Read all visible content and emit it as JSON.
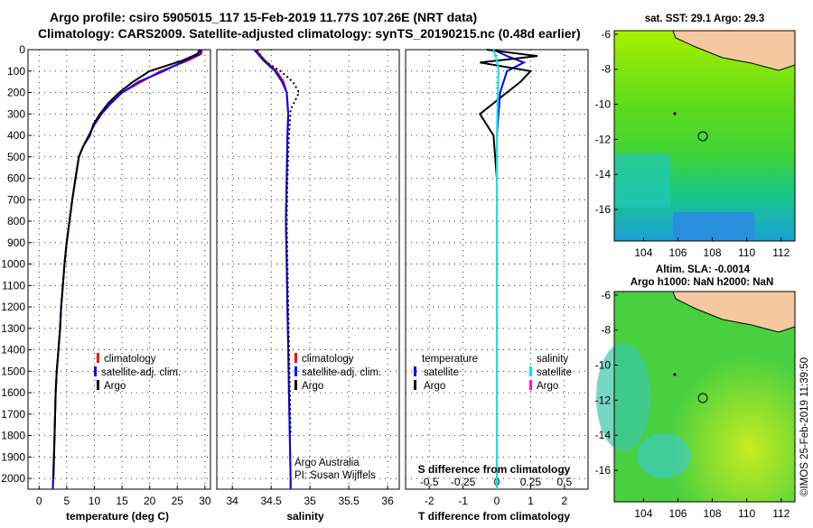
{
  "header": {
    "line1": "Argo profile: csiro 5905015_117 15-Feb-2019 11.77S 107.26E (NRT data)",
    "line2": "Climatology: CARS2009. Satellite-adjusted climatology: synTS_20190215.nc (0.48d earlier)"
  },
  "colors": {
    "climatology": "#ff0000",
    "satellite": "#0000ff",
    "argo": "#000000",
    "s_satellite": "#00e5ee",
    "s_argo": "#ff00ff",
    "land": "#f5c8a0"
  },
  "chart_data": [
    {
      "type": "line",
      "xlabel": "temperature (deg C)",
      "ylabel": "",
      "xlim": [
        -2,
        31
      ],
      "ylim": [
        2050,
        0
      ],
      "xticks": [
        0,
        5,
        10,
        15,
        20,
        25,
        30
      ],
      "yticks": [
        0,
        100,
        200,
        300,
        400,
        500,
        600,
        700,
        800,
        900,
        1000,
        1100,
        1200,
        1300,
        1400,
        1500,
        1600,
        1700,
        1800,
        1900,
        2000
      ],
      "grid": true,
      "legend": "bottom-center",
      "series": [
        {
          "name": "climatology",
          "color": "#ff0000",
          "x": [
            29.5,
            29.3,
            27,
            22,
            18.5,
            15,
            13,
            11.3,
            10,
            9,
            8,
            7.2,
            6.6,
            6,
            5.5,
            5,
            4.6,
            4.3,
            4,
            3.8,
            3.5,
            3.2,
            3,
            2.8,
            2.5
          ],
          "y": [
            0,
            20,
            50,
            100,
            150,
            200,
            250,
            300,
            350,
            400,
            450,
            500,
            600,
            700,
            800,
            900,
            1000,
            1100,
            1200,
            1300,
            1400,
            1500,
            1600,
            1800,
            2050
          ]
        },
        {
          "name": "satellite-adj. clim.",
          "color": "#0000ff",
          "x": [
            29.3,
            29.1,
            26.5,
            22.5,
            18,
            15,
            13,
            11.2,
            10,
            9,
            8,
            7.2,
            6.6,
            6,
            5.5,
            5,
            4.6,
            4.3,
            4,
            3.8,
            3.5,
            3.2,
            3,
            2.8,
            2.5
          ],
          "y": [
            0,
            20,
            50,
            100,
            150,
            200,
            250,
            300,
            350,
            400,
            450,
            500,
            600,
            700,
            800,
            900,
            1000,
            1100,
            1200,
            1300,
            1400,
            1500,
            1600,
            1800,
            2050
          ]
        },
        {
          "name": "Argo",
          "color": "#000000",
          "x": [
            29.1,
            28.6,
            26,
            20,
            17,
            14.5,
            12.5,
            11,
            9.8,
            9.2,
            8,
            7.2,
            6.6,
            6,
            5.5,
            5,
            4.6,
            4.3,
            4,
            3.8,
            3.5,
            3.2,
            3,
            2.8,
            2.6
          ],
          "y": [
            0,
            20,
            50,
            100,
            150,
            200,
            250,
            300,
            350,
            400,
            450,
            500,
            600,
            700,
            800,
            900,
            1000,
            1100,
            1200,
            1300,
            1400,
            1500,
            1600,
            1800,
            2000
          ]
        }
      ]
    },
    {
      "type": "line",
      "xlabel": "salinity",
      "ylabel": "",
      "xlim": [
        33.8,
        36.15
      ],
      "ylim": [
        2050,
        0
      ],
      "xticks": [
        34,
        34.5,
        35,
        35.5,
        36
      ],
      "grid": true,
      "legend": "bottom-right",
      "annotations": [
        "Argo Australia",
        "PI: Susan Wijffels"
      ],
      "series": [
        {
          "name": "climatology",
          "color": "#ff0000",
          "x": [
            34.3,
            34.42,
            34.57,
            34.66,
            34.7,
            34.72,
            34.71,
            34.7,
            34.69,
            34.7,
            34.71,
            34.72,
            34.73,
            34.74,
            34.75,
            34.75
          ],
          "y": [
            0,
            50,
            100,
            150,
            200,
            300,
            400,
            600,
            800,
            1000,
            1200,
            1400,
            1600,
            1800,
            2000,
            2050
          ]
        },
        {
          "name": "satellite-adj. clim.",
          "color": "#0000ff",
          "x": [
            34.28,
            34.4,
            34.55,
            34.64,
            34.7,
            34.72,
            34.71,
            34.7,
            34.69,
            34.7,
            34.71,
            34.72,
            34.73,
            34.74,
            34.75,
            34.75
          ],
          "y": [
            0,
            50,
            100,
            150,
            200,
            300,
            400,
            600,
            800,
            1000,
            1200,
            1400,
            1600,
            1800,
            2000,
            2050
          ]
        },
        {
          "name": "Argo",
          "color": "#000000",
          "x": [
            34.32,
            34.4,
            34.62,
            34.78,
            34.86,
            34.75,
            34.73,
            34.71,
            34.7,
            34.71,
            34.72,
            34.73,
            34.74,
            34.75
          ],
          "y": [
            0,
            50,
            100,
            150,
            200,
            280,
            400,
            600,
            800,
            1000,
            1200,
            1400,
            1600,
            1800
          ]
        }
      ]
    },
    {
      "type": "line",
      "xlabel": "T difference from climatology",
      "top_label": "S difference from climatology",
      "xlim": [
        -2.7,
        2.7
      ],
      "ylim": [
        2050,
        0
      ],
      "xticks": [
        -2,
        -1,
        0,
        1,
        2
      ],
      "top_ticks": [
        "-0.5",
        "-0.25",
        "0",
        "0.25",
        "0.5"
      ],
      "grid": true,
      "legend_titles": [
        "temperature",
        "salinity"
      ],
      "series": [
        {
          "name": "T satellite",
          "color": "#0000ff",
          "x": [
            -0.1,
            0.3,
            0.8,
            0.3,
            0.1,
            0,
            0,
            0,
            0,
            0
          ],
          "y": [
            0,
            30,
            60,
            100,
            200,
            400,
            800,
            1200,
            1600,
            2050
          ]
        },
        {
          "name": "T Argo",
          "color": "#000000",
          "x": [
            -0.3,
            1.2,
            -0.5,
            1.0,
            0.7,
            0.3,
            -0.5,
            -0.1,
            0,
            0,
            0,
            0
          ],
          "y": [
            0,
            30,
            60,
            100,
            150,
            200,
            300,
            400,
            600,
            1000,
            1500,
            2000
          ]
        },
        {
          "name": "S satellite",
          "color": "#00e5ee",
          "x": [
            -0.1,
            0.0,
            0.05,
            0,
            0,
            0
          ],
          "y": [
            0,
            50,
            100,
            400,
            1000,
            2050
          ]
        }
      ]
    }
  ],
  "maps": [
    {
      "title": "sat. SST: 29.1  Argo: 29.3",
      "subtitle": "",
      "xticks": [
        "104",
        "106",
        "108",
        "110",
        "112"
      ],
      "yticks": [
        "-6",
        "-8",
        "-10",
        "-12",
        "-14",
        "-16"
      ]
    },
    {
      "title": "Altim. SLA: -0.0014",
      "subtitle": "Argo h1000: NaN  h2000: NaN",
      "xticks": [
        "104",
        "106",
        "108",
        "110",
        "112"
      ],
      "yticks": [
        "-6",
        "-8",
        "-10",
        "-12",
        "-14",
        "-16"
      ]
    }
  ],
  "footer": {
    "credit": "©IMOS 25-Feb-2019 11:39:50"
  }
}
